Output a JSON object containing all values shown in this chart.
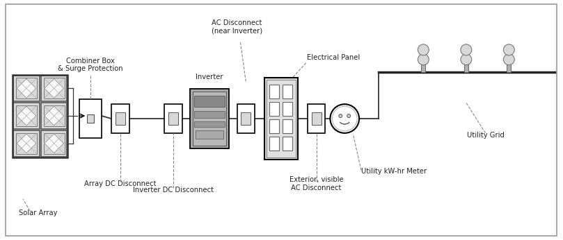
{
  "bg_color": "#ffffff",
  "light_gray": "#d8d8d8",
  "mid_gray": "#b0b0b0",
  "dark_gray": "#808080",
  "inv_gray": "#a8a8a8",
  "fig_width": 8.09,
  "fig_height": 3.46,
  "labels": {
    "solar_array": "Solar Array",
    "combiner_box": "Combiner Box\n& Surge Protection",
    "array_dc_disconnect": "Array DC Disconnect",
    "inverter": "Inverter",
    "inverter_dc_disconnect": "Inverter DC Disconnect",
    "ac_disconnect_near": "AC Disconnect\n(near Inverter)",
    "electrical_panel": "Electrical Panel",
    "exterior_ac_disconnect": "Exterior, visible\nAC Disconnect",
    "utility_meter": "Utility kW-hr Meter",
    "utility_grid": "Utility Grid"
  }
}
